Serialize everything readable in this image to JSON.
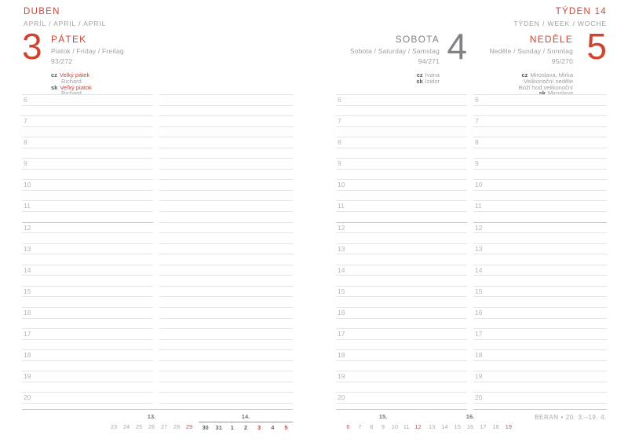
{
  "header": {
    "month": "DUBEN",
    "month_trio": "APRÍL / APRIL / APRIL",
    "week": "TÝDEN 14",
    "week_trio": "TÝDEN / WEEK / WOCHE"
  },
  "days": [
    {
      "number": "3",
      "name": "PÁTEK",
      "trio": "Piatok / Friday / Freitag",
      "ordinal": "93/272",
      "notes": [
        {
          "tag": "cz",
          "text": "Velký pátek",
          "red": true
        },
        {
          "text": "Richard"
        },
        {
          "tag": "sk",
          "text": "Veľký piatok",
          "red": true
        },
        {
          "text": "Richard"
        }
      ]
    },
    {
      "number": "4",
      "name": "SOBOTA",
      "trio": "Sobota / Saturday / Samstag",
      "ordinal": "94/271",
      "notes": [
        {
          "tag": "cz",
          "text": "Ivana"
        },
        {
          "tag": "sk",
          "text": "Izidor"
        }
      ]
    },
    {
      "number": "5",
      "name": "NEDĚLE",
      "trio": "Neděle / Sunday / Sonntag",
      "ordinal": "95/270",
      "notes": [
        {
          "tag": "cz",
          "text": "Miroslava, Mirka"
        },
        {
          "text": "Velikonoční neděle"
        },
        {
          "text": "Boží hod velikonoční"
        },
        {
          "tag": "sk",
          "text": "Miroslava"
        }
      ]
    }
  ],
  "grid": {
    "hours": [
      "6",
      "7",
      "8",
      "9",
      "10",
      "11",
      "12",
      "13",
      "14",
      "15",
      "16",
      "17",
      "18",
      "19",
      "20"
    ],
    "noon_hour": "12"
  },
  "calendar": {
    "weeks": [
      {
        "label": "13.",
        "days": [
          {
            "d": "23"
          },
          {
            "d": "24"
          },
          {
            "d": "25"
          },
          {
            "d": "26"
          },
          {
            "d": "27"
          },
          {
            "d": "28"
          },
          {
            "d": "29",
            "red": true
          }
        ]
      },
      {
        "label": "14.",
        "current": true,
        "days": [
          {
            "d": "30"
          },
          {
            "d": "31"
          },
          {
            "d": "1"
          },
          {
            "d": "2"
          },
          {
            "d": "3",
            "red": true
          },
          {
            "d": "4"
          },
          {
            "d": "5",
            "red": true
          }
        ]
      },
      {
        "label": "15.",
        "days": [
          {
            "d": "6",
            "red": true
          },
          {
            "d": "7"
          },
          {
            "d": "8"
          },
          {
            "d": "9"
          },
          {
            "d": "10"
          },
          {
            "d": "11"
          },
          {
            "d": "12",
            "red": true
          }
        ]
      },
      {
        "label": "16.",
        "days": [
          {
            "d": "13"
          },
          {
            "d": "14"
          },
          {
            "d": "15"
          },
          {
            "d": "16"
          },
          {
            "d": "17"
          },
          {
            "d": "18"
          },
          {
            "d": "19",
            "red": true
          }
        ]
      }
    ],
    "zodiac": "BERAN • 20. 3.–19. 4."
  }
}
